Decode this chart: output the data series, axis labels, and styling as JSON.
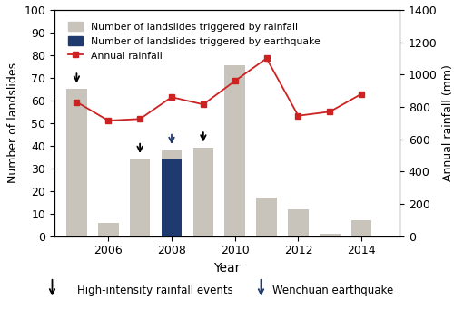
{
  "years": [
    2005,
    2006,
    2007,
    2008,
    2009,
    2010,
    2011,
    2012,
    2013,
    2014
  ],
  "rainfall_landslides": [
    65,
    6,
    34,
    38,
    39,
    76,
    17,
    12,
    1,
    7
  ],
  "earthquake_landslides": [
    0,
    0,
    0,
    34,
    0,
    0,
    0,
    0,
    0,
    0
  ],
  "annual_rainfall": [
    830,
    715,
    725,
    860,
    815,
    960,
    1100,
    745,
    770,
    880
  ],
  "bar_color_rainfall": "#c8c4bc",
  "bar_color_earthquake": "#1e3a6e",
  "line_color": "#cc2222",
  "marker_color": "#cc2222",
  "ylabel_left": "Number of landslides",
  "ylabel_right": "Annual rainfall (mm)",
  "xlabel": "Year",
  "ylim_left": [
    0,
    100
  ],
  "ylim_right": [
    0,
    1400
  ],
  "yticks_left": [
    0,
    10,
    20,
    30,
    40,
    50,
    60,
    70,
    80,
    90,
    100
  ],
  "yticks_right": [
    0,
    200,
    400,
    600,
    800,
    1000,
    1200,
    1400
  ],
  "black_arrow_years": [
    2005,
    2007,
    2009,
    2010
  ],
  "blue_arrow_year": 2008,
  "legend_rainfall_label": "Number of landslides triggered by rainfall",
  "legend_earthquake_label": "Number of landslides triggered by earthquake",
  "legend_annualrain_label": "Annual rainfall",
  "annotation_black": "High-intensity rainfall events",
  "annotation_blue": "Wenchuan earthquake",
  "figsize": [
    5.0,
    3.62
  ],
  "dpi": 100
}
